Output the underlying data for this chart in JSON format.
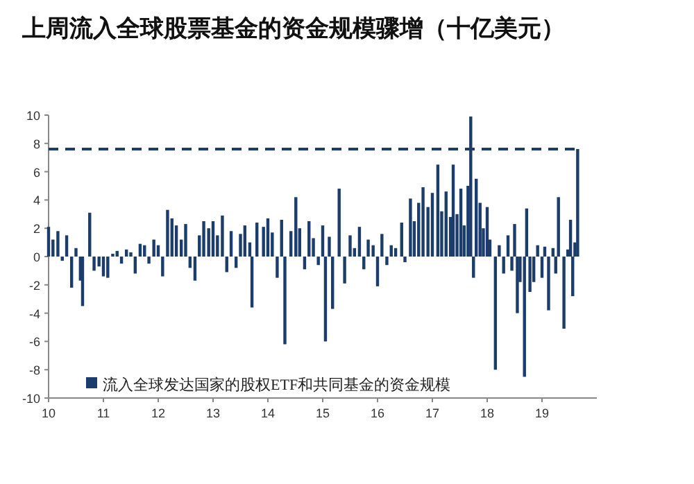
{
  "chart_data": {
    "type": "bar",
    "title": "上周流入全球股票基金的资金规模骤增（十亿美元）",
    "x": [
      2010.0,
      2010.08,
      2010.17,
      2010.25,
      2010.33,
      2010.42,
      2010.5,
      2010.58,
      2010.62,
      2010.75,
      2010.83,
      2010.92,
      2011.0,
      2011.08,
      2011.17,
      2011.25,
      2011.33,
      2011.42,
      2011.5,
      2011.58,
      2011.67,
      2011.75,
      2011.83,
      2011.92,
      2012.0,
      2012.08,
      2012.17,
      2012.25,
      2012.33,
      2012.42,
      2012.5,
      2012.58,
      2012.67,
      2012.75,
      2012.83,
      2012.92,
      2013.0,
      2013.08,
      2013.17,
      2013.25,
      2013.33,
      2013.42,
      2013.5,
      2013.58,
      2013.67,
      2013.71,
      2013.8,
      2013.92,
      2014.0,
      2014.08,
      2014.17,
      2014.25,
      2014.31,
      2014.42,
      2014.51,
      2014.58,
      2014.67,
      2014.75,
      2014.83,
      2014.92,
      2015.0,
      2015.05,
      2015.12,
      2015.18,
      2015.3,
      2015.4,
      2015.5,
      2015.58,
      2015.67,
      2015.75,
      2015.83,
      2015.92,
      2016.0,
      2016.08,
      2016.17,
      2016.25,
      2016.33,
      2016.44,
      2016.5,
      2016.6,
      2016.67,
      2016.75,
      2016.83,
      2016.92,
      2017.0,
      2017.1,
      2017.17,
      2017.25,
      2017.33,
      2017.38,
      2017.45,
      2017.52,
      2017.58,
      2017.65,
      2017.7,
      2017.75,
      2017.8,
      2017.87,
      2017.93,
      2018.0,
      2018.05,
      2018.15,
      2018.22,
      2018.3,
      2018.38,
      2018.45,
      2018.5,
      2018.55,
      2018.6,
      2018.68,
      2018.72,
      2018.78,
      2018.85,
      2018.92,
      2019.0,
      2019.05,
      2019.12,
      2019.2,
      2019.25,
      2019.3,
      2019.4,
      2019.47,
      2019.52,
      2019.56,
      2019.6,
      2019.65
    ],
    "series": [
      {
        "name": "流入全球发达国家的股权ETF和共同基金的资金规模",
        "color": "#1c3d6b",
        "values": [
          2.1,
          1.2,
          1.8,
          -0.3,
          1.5,
          -2.2,
          0.6,
          -1.7,
          -3.5,
          3.1,
          -1.0,
          -0.7,
          -1.4,
          -1.5,
          0.2,
          0.4,
          -0.5,
          0.5,
          0.3,
          -1.2,
          0.9,
          0.8,
          -0.5,
          1.2,
          0.8,
          -1.4,
          3.3,
          2.7,
          2.2,
          1.2,
          2.3,
          -0.8,
          -1.7,
          1.5,
          2.5,
          2.0,
          2.5,
          1.5,
          2.9,
          -1.1,
          1.8,
          -0.8,
          1.6,
          2.2,
          1.0,
          -3.6,
          2.4,
          2.1,
          2.7,
          1.7,
          -1.5,
          2.6,
          -6.2,
          1.8,
          4.2,
          2.0,
          -0.9,
          2.5,
          1.3,
          -0.6,
          2.2,
          -6.0,
          1.4,
          -3.7,
          4.8,
          -1.9,
          1.5,
          0.6,
          2.1,
          -0.9,
          1.2,
          0.8,
          -2.1,
          1.6,
          -0.6,
          0.8,
          0.6,
          2.4,
          -0.4,
          4.1,
          2.5,
          3.8,
          4.9,
          3.5,
          4.5,
          6.5,
          3.2,
          4.6,
          2.8,
          6.5,
          3.0,
          4.8,
          2.2,
          5.0,
          9.9,
          -1.5,
          5.5,
          3.8,
          2.0,
          3.5,
          1.2,
          -8.0,
          0.8,
          -1.2,
          1.5,
          -1.0,
          2.3,
          -4.0,
          -1.8,
          -8.5,
          3.4,
          -2.5,
          -1.8,
          0.8,
          -1.5,
          0.7,
          -3.8,
          0.6,
          -1.2,
          4.2,
          -5.1,
          0.5,
          2.6,
          -2.8,
          1.0,
          7.6
        ]
      }
    ],
    "xlim": [
      2010,
      2020
    ],
    "xticks": [
      {
        "value": 2010,
        "label": "10"
      },
      {
        "value": 2011,
        "label": "11"
      },
      {
        "value": 2012,
        "label": "12"
      },
      {
        "value": 2013,
        "label": "13"
      },
      {
        "value": 2014,
        "label": "14"
      },
      {
        "value": 2015,
        "label": "15"
      },
      {
        "value": 2016,
        "label": "16"
      },
      {
        "value": 2017,
        "label": "17"
      },
      {
        "value": 2018,
        "label": "18"
      },
      {
        "value": 2019,
        "label": "19"
      }
    ],
    "ylim": [
      -10,
      10
    ],
    "yticks": [
      -10,
      -8,
      -6,
      -4,
      -2,
      0,
      2,
      4,
      6,
      8,
      10
    ],
    "ref_lines": [
      {
        "axis": "y",
        "value": 7.6,
        "color": "#1c3d6b",
        "line_style": "dashed"
      }
    ],
    "legend": "bottom",
    "grid": false
  }
}
